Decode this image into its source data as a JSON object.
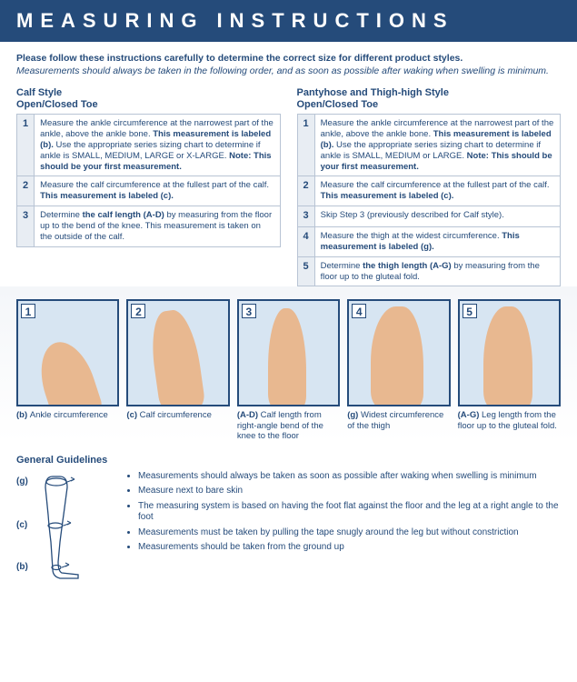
{
  "header": "MEASURING INSTRUCTIONS",
  "intro_bold": "Please follow these instructions carefully to determine the correct size for different product styles.",
  "intro_italic": "Measurements should always be taken in the following order, and as soon as possible after waking when swelling is minimum.",
  "colors": {
    "primary": "#254b7a",
    "row_alt": "#e8edf3",
    "border": "#b8c4d4",
    "skin": "#e8b890"
  },
  "left_col": {
    "title": "Calf Style",
    "subtitle": "Open/Closed Toe",
    "steps": [
      {
        "n": "1",
        "html": "Measure the ankle circumference at the narrowest part of the ankle, above the ankle bone. <b>This measurement is labeled (b).</b> Use the appropriate series sizing chart to determine if ankle is SMALL, MEDIUM, LARGE or X-LARGE. <b>Note: This should be your first measurement.</b>"
      },
      {
        "n": "2",
        "html": "Measure the calf circumference at the fullest part of the calf. <b>This measurement is labeled (c).</b>"
      },
      {
        "n": "3",
        "html": "Determine <b>the calf length (A-D)</b> by measuring from the floor up to the bend of the knee. This measurement is taken on the outside of the calf."
      }
    ]
  },
  "right_col": {
    "title": "Pantyhose and Thigh-high Style",
    "subtitle": "Open/Closed Toe",
    "steps": [
      {
        "n": "1",
        "html": "Measure the ankle circumference at the narrowest part of the ankle, above the ankle bone. <b>This measurement is labeled (b).</b> Use the appropriate series sizing chart to determine if ankle is SMALL, MEDIUM or LARGE. <b>Note: This should be your first measurement.</b>"
      },
      {
        "n": "2",
        "html": "Measure the calf circumference at the fullest part of the calf. <b>This measurement is labeled (c).</b>"
      },
      {
        "n": "3",
        "html": "Skip Step 3 (previously described for Calf style)."
      },
      {
        "n": "4",
        "html": "Measure the thigh at the widest circumference. <b>This measurement is labeled (g).</b>"
      },
      {
        "n": "5",
        "html": "Determine <b>the thigh length (A-G)</b> by measuring from the floor up to the gluteal fold."
      }
    ]
  },
  "images": [
    {
      "n": "1",
      "label": "(b)",
      "caption": "Ankle circumference"
    },
    {
      "n": "2",
      "label": "(c)",
      "caption": "Calf circumference"
    },
    {
      "n": "3",
      "label": "(A-D)",
      "caption": "Calf length from right-angle bend of the knee to the floor"
    },
    {
      "n": "4",
      "label": "(g)",
      "caption": "Widest circumference of the thigh"
    },
    {
      "n": "5",
      "label": "(A-G)",
      "caption": "Leg length from the floor up to the gluteal fold."
    }
  ],
  "guidelines": {
    "title": "General Guidelines",
    "labels": [
      "(g)",
      "(c)",
      "(b)"
    ],
    "items": [
      "Measurements should always be taken as soon as possible after waking when swelling is minimum",
      "Measure next to bare skin",
      "The measuring system is based on having the foot flat against the floor and the leg at a right angle to the foot",
      "Measurements must be taken by pulling the tape snugly around the leg but without constriction",
      "Measurements should be taken from the ground up"
    ]
  }
}
